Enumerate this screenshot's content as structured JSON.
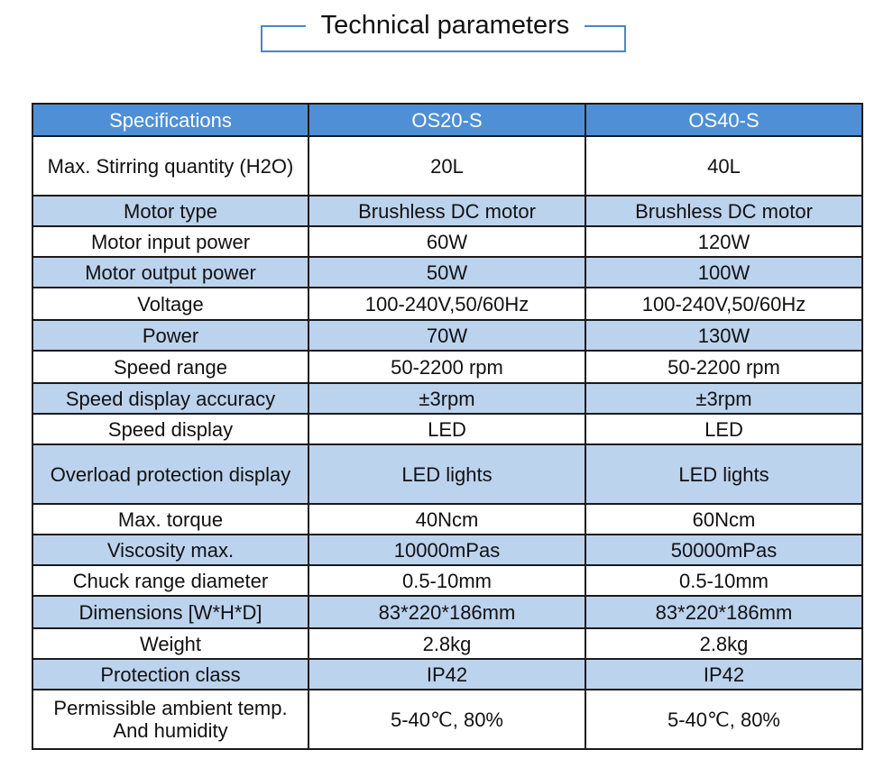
{
  "title": "Technical parameters",
  "table": {
    "headers": [
      "Specifications",
      "OS20-S",
      "OS40-S"
    ],
    "rows": [
      {
        "label": "Max. Stirring quantity (H2O)",
        "os20": "20L",
        "os40": "40L"
      },
      {
        "label": "Motor type",
        "os20": "Brushless DC motor",
        "os40": "Brushless DC motor"
      },
      {
        "label": "Motor input power",
        "os20": "60W",
        "os40": "120W"
      },
      {
        "label": "Motor output power",
        "os20": "50W",
        "os40": "100W"
      },
      {
        "label": "Voltage",
        "os20": "100-240V,50/60Hz",
        "os40": "100-240V,50/60Hz"
      },
      {
        "label": "Power",
        "os20": "70W",
        "os40": "130W"
      },
      {
        "label": "Speed range",
        "os20": "50-2200 rpm",
        "os40": "50-2200 rpm"
      },
      {
        "label": "Speed display accuracy",
        "os20": "±3rpm",
        "os40": "±3rpm"
      },
      {
        "label": "Speed display",
        "os20": "LED",
        "os40": "LED"
      },
      {
        "label": "Overload protection display",
        "os20": "LED lights",
        "os40": "LED lights"
      },
      {
        "label": "Max. torque",
        "os20": "40Ncm",
        "os40": "60Ncm"
      },
      {
        "label": "Viscosity max.",
        "os20": "10000mPas",
        "os40": "50000mPas"
      },
      {
        "label": "Chuck range diameter",
        "os20": "0.5-10mm",
        "os40": "0.5-10mm"
      },
      {
        "label": "Dimensions [W*H*D]",
        "os20": "83*220*186mm",
        "os40": "83*220*186mm"
      },
      {
        "label": "Weight",
        "os20": "2.8kg",
        "os40": "2.8kg"
      },
      {
        "label": "Protection class",
        "os20": "IP42",
        "os40": "IP42"
      },
      {
        "label": "Permissible ambient temp. And humidity",
        "os20": "5-40℃, 80%",
        "os40": "5-40℃, 80%"
      }
    ]
  }
}
